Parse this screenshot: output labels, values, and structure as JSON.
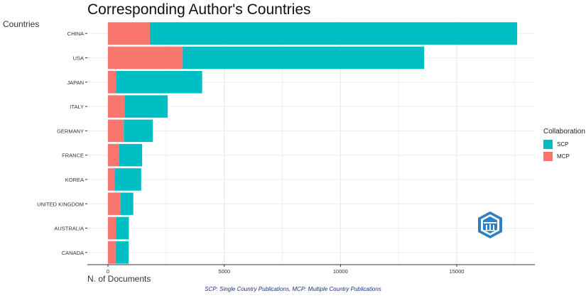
{
  "chart_data": {
    "type": "bar",
    "orientation": "horizontal",
    "stacked": true,
    "title": "Corresponding Author's Countries",
    "xlabel": "N. of Documents",
    "ylabel": "Countries",
    "categories": [
      "CHINA",
      "USA",
      "JAPAN",
      "ITALY",
      "GERMANY",
      "FRANCE",
      "KOREA",
      "UNITED KINGDOM",
      "AUSTRALIA",
      "CANADA"
    ],
    "series": [
      {
        "name": "MCP",
        "color": "#F8766D",
        "values": [
          1800,
          3200,
          350,
          720,
          680,
          470,
          280,
          530,
          340,
          330
        ]
      },
      {
        "name": "SCP",
        "color": "#00BFC4",
        "values": [
          15800,
          10400,
          3700,
          1850,
          1250,
          1000,
          1150,
          560,
          560,
          560
        ]
      }
    ],
    "xlim": [
      0,
      18300
    ],
    "xticks": [
      "0",
      "5000",
      "10000",
      "15000"
    ],
    "grid": true,
    "legend_placement": "right",
    "caption": "SCP: Single Country Publications, MCP: Multiple Country Publications"
  },
  "legend": {
    "title": "Collaboration",
    "items": [
      {
        "label": "SCP",
        "color": "#00BFC4"
      },
      {
        "label": "MCP",
        "color": "#F8766D"
      }
    ]
  },
  "logo": {
    "icon": "shield-logo-icon",
    "color": "#2f7fc1"
  }
}
